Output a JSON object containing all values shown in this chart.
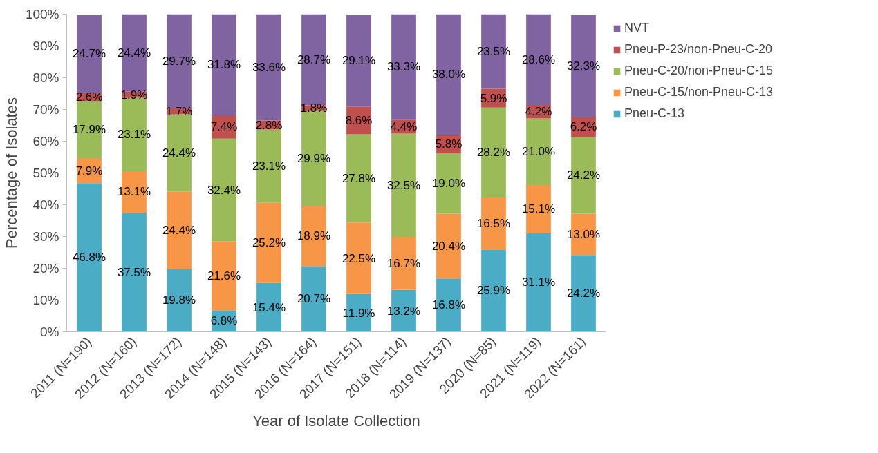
{
  "chart_data": {
    "type": "bar",
    "stacked": true,
    "xlabel": "Year of Isolate Collection",
    "ylabel": "Percentage of Isolates",
    "categories": [
      "2011 (N=190)",
      "2012 (N=160)",
      "2013 (N=172)",
      "2014 (N=148)",
      "2015 (N=143)",
      "2016 (N=164)",
      "2017 (N=151)",
      "2018 (N=114)",
      "2019 (N=137)",
      "2020 (N=85)",
      "2021 (N=119)",
      "2022 (N=161)"
    ],
    "series": [
      {
        "name": "Pneu-C-13",
        "color": "#4bacc6",
        "values": [
          46.8,
          37.5,
          19.8,
          6.8,
          15.4,
          20.7,
          11.9,
          13.2,
          16.8,
          25.9,
          31.1,
          24.2
        ],
        "value_labels": [
          "46.8%",
          "37.5%",
          "19.8%",
          "6.8%",
          "15.4%",
          "20.7%",
          "11.9%",
          "13.2%",
          "16.8%",
          "25.9%",
          "31.1%",
          "24.2%"
        ]
      },
      {
        "name": "Pneu-C-15/non-Pneu-C-13",
        "color": "#f79646",
        "values": [
          7.9,
          13.1,
          24.4,
          21.6,
          25.2,
          18.9,
          22.5,
          16.7,
          20.4,
          16.5,
          15.1,
          13.0
        ],
        "value_labels": [
          "7.9%",
          "13.1%",
          "24.4%",
          "21.6%",
          "25.2%",
          "18.9%",
          "22.5%",
          "16.7%",
          "20.4%",
          "16.5%",
          "15.1%",
          "13.0%"
        ]
      },
      {
        "name": "Pneu-C-20/non-Pneu-C-15",
        "color": "#9bbb59",
        "values": [
          17.9,
          23.1,
          24.4,
          32.4,
          23.1,
          29.9,
          27.8,
          32.5,
          19.0,
          28.2,
          21.0,
          24.2
        ],
        "value_labels": [
          "17.9%",
          "23.1%",
          "24.4%",
          "32.4%",
          "23.1%",
          "29.9%",
          "27.8%",
          "32.5%",
          "19.0%",
          "28.2%",
          "21.0%",
          "24.2%"
        ]
      },
      {
        "name": "Pneu-P-23/non-Pneu-C-20",
        "color": "#c0504d",
        "values": [
          2.6,
          1.9,
          1.7,
          7.4,
          2.8,
          1.8,
          8.6,
          4.4,
          5.8,
          5.9,
          4.2,
          6.2
        ],
        "value_labels": [
          "2.6%",
          "1.9%",
          "1.7%",
          "7.4%",
          "2.8%",
          "1.8%",
          "8.6%",
          "4.4%",
          "5.8%",
          "5.9%",
          "4.2%",
          "6.2%"
        ]
      },
      {
        "name": "NVT",
        "color": "#8064a2",
        "values": [
          24.7,
          24.4,
          29.7,
          31.8,
          33.6,
          28.7,
          29.1,
          33.3,
          38.0,
          23.5,
          28.6,
          32.3
        ],
        "value_labels": [
          "24.7%",
          "24.4%",
          "29.7%",
          "31.8%",
          "33.6%",
          "28.7%",
          "29.1%",
          "33.3%",
          "38.0%",
          "23.5%",
          "28.6%",
          "32.3%"
        ]
      }
    ],
    "ylim": [
      0,
      100
    ],
    "yticks": [
      {
        "value": 0,
        "label": "0%"
      },
      {
        "value": 10,
        "label": "10%"
      },
      {
        "value": 20,
        "label": "20%"
      },
      {
        "value": 30,
        "label": "30%"
      },
      {
        "value": 40,
        "label": "40%"
      },
      {
        "value": 50,
        "label": "50%"
      },
      {
        "value": 60,
        "label": "60%"
      },
      {
        "value": 70,
        "label": "70%"
      },
      {
        "value": 80,
        "label": "80%"
      },
      {
        "value": 90,
        "label": "90%"
      },
      {
        "value": 100,
        "label": "100%"
      }
    ],
    "grid": false,
    "legend": "right"
  }
}
